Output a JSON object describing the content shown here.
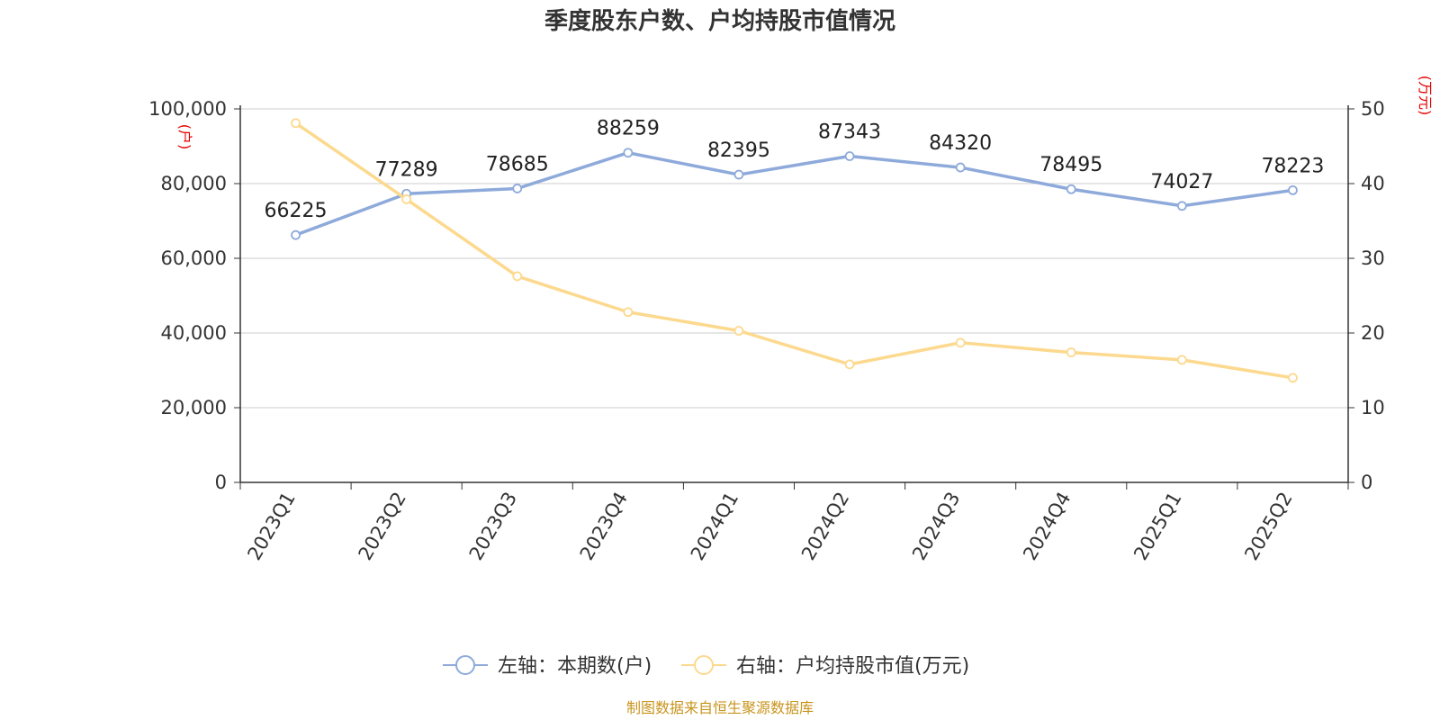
{
  "chart_data": {
    "type": "line",
    "title": "季度股东户数、户均持股市值情况",
    "categories": [
      "2023Q1",
      "2023Q2",
      "2023Q3",
      "2023Q4",
      "2024Q1",
      "2024Q2",
      "2024Q3",
      "2024Q4",
      "2025Q1",
      "2025Q2"
    ],
    "y_left": {
      "unit": "(户)",
      "ylim": [
        0,
        100000
      ],
      "ticks": [
        "0",
        "20,000",
        "40,000",
        "60,000",
        "80,000",
        "100,000"
      ],
      "tick_values": [
        0,
        20000,
        40000,
        60000,
        80000,
        100000
      ]
    },
    "y_right": {
      "unit": "(万元)",
      "ylim": [
        0,
        50
      ],
      "ticks": [
        "0",
        "10",
        "20",
        "30",
        "40",
        "50"
      ],
      "tick_values": [
        0,
        10,
        20,
        30,
        40,
        50
      ]
    },
    "series": [
      {
        "name": "左轴：本期数(户)",
        "axis": "left",
        "color": "#8eaadb",
        "values": [
          66225,
          77289,
          78685,
          88259,
          82395,
          87343,
          84320,
          78495,
          74027,
          78223
        ],
        "labels": [
          "66225",
          "77289",
          "78685",
          "88259",
          "82395",
          "87343",
          "84320",
          "78495",
          "74027",
          "78223"
        ]
      },
      {
        "name": "右轴：户均持股市值(万元)",
        "axis": "right",
        "color": "#fcd98e",
        "values": [
          48.1,
          37.9,
          27.6,
          22.8,
          20.3,
          15.8,
          18.7,
          17.4,
          16.4,
          14.0
        ]
      }
    ],
    "grid": true,
    "legend_position": "bottom"
  },
  "footer": {
    "source": "制图数据来自恒生聚源数据库"
  }
}
